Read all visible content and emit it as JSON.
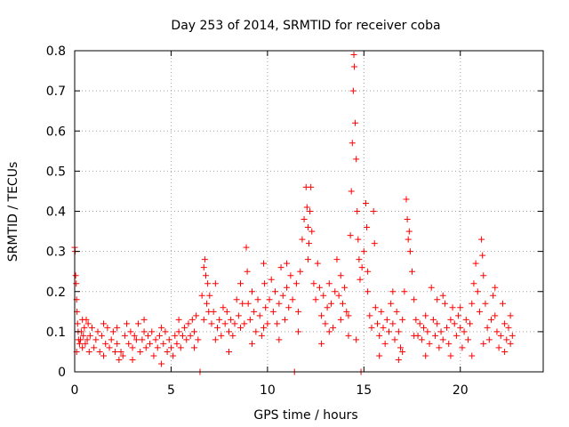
{
  "chart_data": {
    "type": "scatter",
    "title": "Day 253 of 2014, SRMTID for receiver coba",
    "xlabel": "GPS time / hours",
    "ylabel": "SRMTID / TECUs",
    "xlim": [
      0,
      24.3
    ],
    "ylim": [
      0,
      0.8
    ],
    "xticks": [
      0,
      5,
      10,
      15,
      20
    ],
    "xtick_labels": [
      "0",
      "5",
      "10",
      "15",
      "20"
    ],
    "yticks": [
      0,
      0.1,
      0.2,
      0.3,
      0.4,
      0.5,
      0.6,
      0.7,
      0.8
    ],
    "ytick_labels": [
      "0",
      "0.1",
      "0.2",
      "0.3",
      "0.4",
      "0.5",
      "0.6",
      "0.7",
      "0.8"
    ],
    "grid": true,
    "marker": "+",
    "color": "#ff0000",
    "series": [
      {
        "name": "SRMTID",
        "points": [
          [
            0.0,
            0.31
          ],
          [
            0.02,
            0.3
          ],
          [
            0.05,
            0.24
          ],
          [
            0.08,
            0.22
          ],
          [
            0.1,
            0.18
          ],
          [
            0.12,
            0.15
          ],
          [
            0.15,
            0.12
          ],
          [
            0.18,
            0.1
          ],
          [
            0.2,
            0.08
          ],
          [
            0.25,
            0.07
          ],
          [
            0.3,
            0.08
          ],
          [
            0.35,
            0.1
          ],
          [
            0.4,
            0.06
          ],
          [
            0.45,
            0.09
          ],
          [
            0.5,
            0.11
          ],
          [
            0.55,
            0.07
          ],
          [
            0.6,
            0.13
          ],
          [
            0.65,
            0.08
          ],
          [
            0.7,
            0.12
          ],
          [
            0.75,
            0.05
          ],
          [
            0.8,
            0.09
          ],
          [
            0.9,
            0.11
          ],
          [
            1.0,
            0.06
          ],
          [
            1.1,
            0.08
          ],
          [
            1.2,
            0.1
          ],
          [
            1.3,
            0.05
          ],
          [
            1.4,
            0.09
          ],
          [
            1.5,
            0.12
          ],
          [
            1.6,
            0.07
          ],
          [
            1.7,
            0.11
          ],
          [
            1.8,
            0.06
          ],
          [
            1.9,
            0.08
          ],
          [
            2.0,
            0.1
          ],
          [
            2.1,
            0.05
          ],
          [
            2.2,
            0.07
          ],
          [
            2.3,
            0.03
          ],
          [
            2.4,
            0.05
          ],
          [
            2.5,
            0.04
          ],
          [
            2.6,
            0.09
          ],
          [
            2.7,
            0.12
          ],
          [
            2.8,
            0.07
          ],
          [
            2.9,
            0.1
          ],
          [
            3.0,
            0.06
          ],
          [
            3.1,
            0.09
          ],
          [
            3.2,
            0.08
          ],
          [
            3.3,
            0.12
          ],
          [
            3.4,
            0.05
          ],
          [
            3.5,
            0.08
          ],
          [
            3.6,
            0.1
          ],
          [
            3.7,
            0.06
          ],
          [
            3.8,
            0.09
          ],
          [
            3.9,
            0.07
          ],
          [
            4.0,
            0.1
          ],
          [
            4.1,
            0.04
          ],
          [
            4.2,
            0.08
          ],
          [
            4.3,
            0.06
          ],
          [
            4.4,
            0.09
          ],
          [
            4.5,
            0.11
          ],
          [
            4.6,
            0.07
          ],
          [
            4.7,
            0.1
          ],
          [
            4.8,
            0.05
          ],
          [
            4.9,
            0.08
          ],
          [
            5.0,
            0.06
          ],
          [
            5.1,
            0.04
          ],
          [
            5.2,
            0.09
          ],
          [
            5.3,
            0.07
          ],
          [
            5.4,
            0.1
          ],
          [
            5.5,
            0.06
          ],
          [
            5.6,
            0.09
          ],
          [
            5.7,
            0.11
          ],
          [
            5.8,
            0.08
          ],
          [
            5.9,
            0.12
          ],
          [
            6.0,
            0.09
          ],
          [
            6.1,
            0.13
          ],
          [
            6.2,
            0.1
          ],
          [
            6.3,
            0.14
          ],
          [
            6.4,
            0.08
          ],
          [
            6.5,
            0.0
          ],
          [
            6.6,
            0.19
          ],
          [
            6.7,
            0.26
          ],
          [
            6.75,
            0.28
          ],
          [
            6.8,
            0.24
          ],
          [
            6.85,
            0.17
          ],
          [
            6.9,
            0.22
          ],
          [
            6.95,
            0.15
          ],
          [
            7.0,
            0.19
          ],
          [
            7.1,
            0.12
          ],
          [
            7.2,
            0.15
          ],
          [
            7.3,
            0.08
          ],
          [
            7.4,
            0.11
          ],
          [
            7.5,
            0.13
          ],
          [
            7.6,
            0.09
          ],
          [
            7.7,
            0.16
          ],
          [
            7.8,
            0.12
          ],
          [
            7.9,
            0.15
          ],
          [
            8.0,
            0.1
          ],
          [
            8.1,
            0.13
          ],
          [
            8.2,
            0.09
          ],
          [
            8.3,
            0.12
          ],
          [
            8.4,
            0.18
          ],
          [
            8.5,
            0.14
          ],
          [
            8.6,
            0.11
          ],
          [
            8.7,
            0.17
          ],
          [
            8.8,
            0.12
          ],
          [
            8.9,
            0.31
          ],
          [
            8.95,
            0.25
          ],
          [
            9.0,
            0.17
          ],
          [
            9.1,
            0.13
          ],
          [
            9.2,
            0.2
          ],
          [
            9.3,
            0.15
          ],
          [
            9.4,
            0.1
          ],
          [
            9.5,
            0.18
          ],
          [
            9.6,
            0.14
          ],
          [
            9.7,
            0.09
          ],
          [
            9.8,
            0.27
          ],
          [
            9.85,
            0.22
          ],
          [
            9.9,
            0.16
          ],
          [
            10.0,
            0.12
          ],
          [
            10.1,
            0.18
          ],
          [
            10.2,
            0.23
          ],
          [
            10.3,
            0.15
          ],
          [
            10.4,
            0.2
          ],
          [
            10.5,
            0.12
          ],
          [
            10.6,
            0.17
          ],
          [
            10.7,
            0.26
          ],
          [
            10.8,
            0.19
          ],
          [
            10.9,
            0.13
          ],
          [
            11.0,
            0.21
          ],
          [
            11.1,
            0.16
          ],
          [
            11.2,
            0.24
          ],
          [
            11.3,
            0.18
          ],
          [
            11.4,
            0.0
          ],
          [
            11.5,
            0.22
          ],
          [
            11.6,
            0.15
          ],
          [
            11.7,
            0.25
          ],
          [
            11.8,
            0.33
          ],
          [
            11.9,
            0.38
          ],
          [
            12.0,
            0.46
          ],
          [
            12.05,
            0.41
          ],
          [
            12.1,
            0.36
          ],
          [
            12.15,
            0.32
          ],
          [
            12.2,
            0.4
          ],
          [
            12.25,
            0.46
          ],
          [
            12.3,
            0.35
          ],
          [
            12.4,
            0.22
          ],
          [
            12.5,
            0.18
          ],
          [
            12.6,
            0.27
          ],
          [
            12.7,
            0.21
          ],
          [
            12.8,
            0.14
          ],
          [
            12.9,
            0.19
          ],
          [
            13.0,
            0.12
          ],
          [
            13.1,
            0.16
          ],
          [
            13.2,
            0.22
          ],
          [
            13.3,
            0.17
          ],
          [
            13.4,
            0.11
          ],
          [
            13.5,
            0.2
          ],
          [
            13.6,
            0.28
          ],
          [
            13.7,
            0.19
          ],
          [
            13.8,
            0.13
          ],
          [
            13.9,
            0.17
          ],
          [
            14.0,
            0.21
          ],
          [
            14.1,
            0.15
          ],
          [
            14.2,
            0.09
          ],
          [
            14.3,
            0.34
          ],
          [
            14.35,
            0.45
          ],
          [
            14.4,
            0.57
          ],
          [
            14.45,
            0.7
          ],
          [
            14.48,
            0.79
          ],
          [
            14.5,
            0.76
          ],
          [
            14.55,
            0.62
          ],
          [
            14.6,
            0.53
          ],
          [
            14.65,
            0.4
          ],
          [
            14.7,
            0.33
          ],
          [
            14.75,
            0.28
          ],
          [
            14.8,
            0.23
          ],
          [
            14.85,
            0.0
          ],
          [
            14.9,
            0.26
          ],
          [
            15.0,
            0.3
          ],
          [
            15.1,
            0.42
          ],
          [
            15.15,
            0.36
          ],
          [
            15.2,
            0.2
          ],
          [
            15.3,
            0.14
          ],
          [
            15.4,
            0.11
          ],
          [
            15.5,
            0.4
          ],
          [
            15.55,
            0.32
          ],
          [
            15.6,
            0.16
          ],
          [
            15.7,
            0.12
          ],
          [
            15.8,
            0.09
          ],
          [
            15.9,
            0.15
          ],
          [
            16.0,
            0.11
          ],
          [
            16.1,
            0.07
          ],
          [
            16.2,
            0.13
          ],
          [
            16.3,
            0.1
          ],
          [
            16.4,
            0.17
          ],
          [
            16.5,
            0.12
          ],
          [
            16.6,
            0.08
          ],
          [
            16.7,
            0.15
          ],
          [
            16.8,
            0.1
          ],
          [
            16.9,
            0.06
          ],
          [
            17.0,
            0.13
          ],
          [
            17.1,
            0.2
          ],
          [
            17.2,
            0.43
          ],
          [
            17.25,
            0.38
          ],
          [
            17.3,
            0.33
          ],
          [
            17.35,
            0.35
          ],
          [
            17.4,
            0.3
          ],
          [
            17.5,
            0.25
          ],
          [
            17.6,
            0.18
          ],
          [
            17.7,
            0.13
          ],
          [
            17.8,
            0.09
          ],
          [
            17.9,
            0.12
          ],
          [
            18.0,
            0.08
          ],
          [
            18.1,
            0.11
          ],
          [
            18.2,
            0.14
          ],
          [
            18.3,
            0.1
          ],
          [
            18.4,
            0.07
          ],
          [
            18.5,
            0.21
          ],
          [
            18.6,
            0.13
          ],
          [
            18.7,
            0.09
          ],
          [
            18.8,
            0.12
          ],
          [
            18.9,
            0.06
          ],
          [
            19.0,
            0.1
          ],
          [
            19.1,
            0.08
          ],
          [
            19.2,
            0.17
          ],
          [
            19.3,
            0.11
          ],
          [
            19.4,
            0.07
          ],
          [
            19.5,
            0.13
          ],
          [
            19.6,
            0.16
          ],
          [
            19.7,
            0.12
          ],
          [
            19.8,
            0.09
          ],
          [
            19.9,
            0.14
          ],
          [
            20.0,
            0.11
          ],
          [
            20.1,
            0.06
          ],
          [
            20.2,
            0.1
          ],
          [
            20.3,
            0.13
          ],
          [
            20.4,
            0.08
          ],
          [
            20.5,
            0.12
          ],
          [
            20.6,
            0.17
          ],
          [
            20.7,
            0.22
          ],
          [
            20.8,
            0.27
          ],
          [
            20.9,
            0.2
          ],
          [
            21.0,
            0.15
          ],
          [
            21.1,
            0.33
          ],
          [
            21.15,
            0.29
          ],
          [
            21.2,
            0.24
          ],
          [
            21.3,
            0.17
          ],
          [
            21.4,
            0.11
          ],
          [
            21.5,
            0.08
          ],
          [
            21.6,
            0.13
          ],
          [
            21.7,
            0.19
          ],
          [
            21.8,
            0.14
          ],
          [
            21.9,
            0.1
          ],
          [
            22.0,
            0.06
          ],
          [
            22.1,
            0.09
          ],
          [
            22.2,
            0.17
          ],
          [
            22.3,
            0.12
          ],
          [
            22.4,
            0.08
          ],
          [
            22.5,
            0.11
          ],
          [
            22.6,
            0.07
          ],
          [
            22.7,
            0.09
          ],
          [
            0.1,
            0.05
          ],
          [
            0.4,
            0.13
          ],
          [
            1.5,
            0.04
          ],
          [
            2.2,
            0.11
          ],
          [
            3.0,
            0.03
          ],
          [
            3.6,
            0.13
          ],
          [
            4.5,
            0.02
          ],
          [
            5.4,
            0.13
          ],
          [
            6.2,
            0.06
          ],
          [
            6.7,
            0.13
          ],
          [
            7.3,
            0.22
          ],
          [
            8.0,
            0.05
          ],
          [
            8.6,
            0.22
          ],
          [
            9.2,
            0.07
          ],
          [
            9.8,
            0.11
          ],
          [
            10.6,
            0.08
          ],
          [
            11.0,
            0.27
          ],
          [
            11.6,
            0.1
          ],
          [
            12.1,
            0.28
          ],
          [
            12.8,
            0.07
          ],
          [
            13.2,
            0.1
          ],
          [
            13.8,
            0.24
          ],
          [
            14.2,
            0.14
          ],
          [
            14.6,
            0.08
          ],
          [
            15.2,
            0.25
          ],
          [
            15.8,
            0.04
          ],
          [
            16.5,
            0.2
          ],
          [
            17.0,
            0.05
          ],
          [
            17.6,
            0.09
          ],
          [
            18.2,
            0.04
          ],
          [
            18.8,
            0.18
          ],
          [
            19.5,
            0.04
          ],
          [
            20.0,
            0.16
          ],
          [
            20.6,
            0.04
          ],
          [
            21.2,
            0.07
          ],
          [
            21.8,
            0.21
          ],
          [
            22.3,
            0.05
          ],
          [
            22.6,
            0.14
          ],
          [
            16.8,
            0.03
          ],
          [
            19.1,
            0.19
          ]
        ]
      }
    ]
  }
}
